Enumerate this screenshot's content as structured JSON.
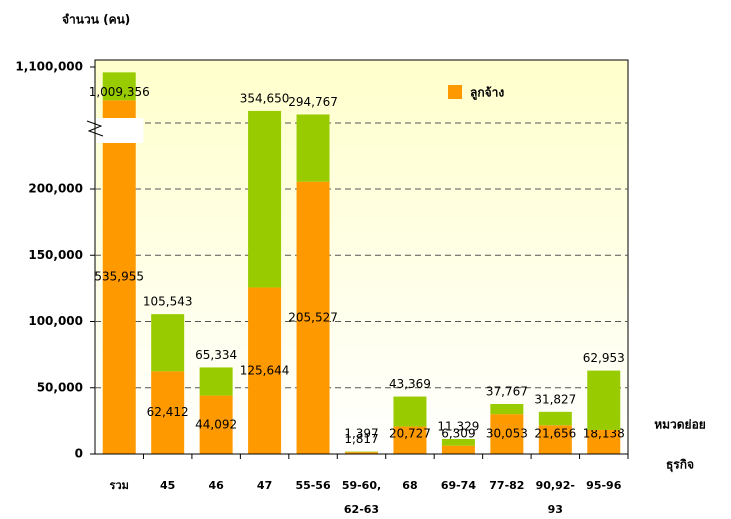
{
  "chart_data": {
    "type": "stacked_bar",
    "y_label": "จำนวน (คน)",
    "x_label": [
      "หมวดย่อย",
      "ธุรกิจ"
    ],
    "categories": [
      "รวม",
      "45",
      "46",
      "47",
      "55-56",
      "59-60, 62-63",
      "68",
      "69-74",
      "77-82",
      "90,92-93",
      "95-96"
    ],
    "series": [
      {
        "name": "ลูกจ้าง",
        "color": "#ff9900",
        "values": [
          535955,
          62412,
          44092,
          125644,
          205527,
          1397,
          20727,
          6309,
          30053,
          21656,
          18138
        ],
        "value_labels": [
          "535,955",
          "62,412",
          "44,092",
          "125,644",
          "205,527",
          "1,397",
          "20,727",
          "6,309",
          "30,053",
          "21,656",
          "18,138"
        ]
      },
      {
        "color": "#99cc00",
        "values": [
          473401,
          43131,
          21242,
          229006,
          89240,
          420,
          22642,
          5020,
          7714,
          10171,
          44815
        ]
      }
    ],
    "total_labels": [
      "1,009,356",
      "105,543",
      "65,334",
      "354,650",
      "294,767",
      "1,817",
      "43,369",
      "11,329",
      "37,767",
      "31,827",
      "62,953"
    ],
    "ylim": [
      0,
      1100000
    ],
    "yticks": [
      0,
      {
        "value": 50000,
        "label": "50,000"
      },
      {
        "value": 100000,
        "label": "100,000"
      },
      {
        "value": 150000,
        "label": "150,000"
      },
      {
        "value": 200000,
        "label": "200,000"
      },
      {
        "value": 1100000,
        "label": "1,100,000"
      }
    ],
    "grid": true,
    "legend": "top-right"
  }
}
